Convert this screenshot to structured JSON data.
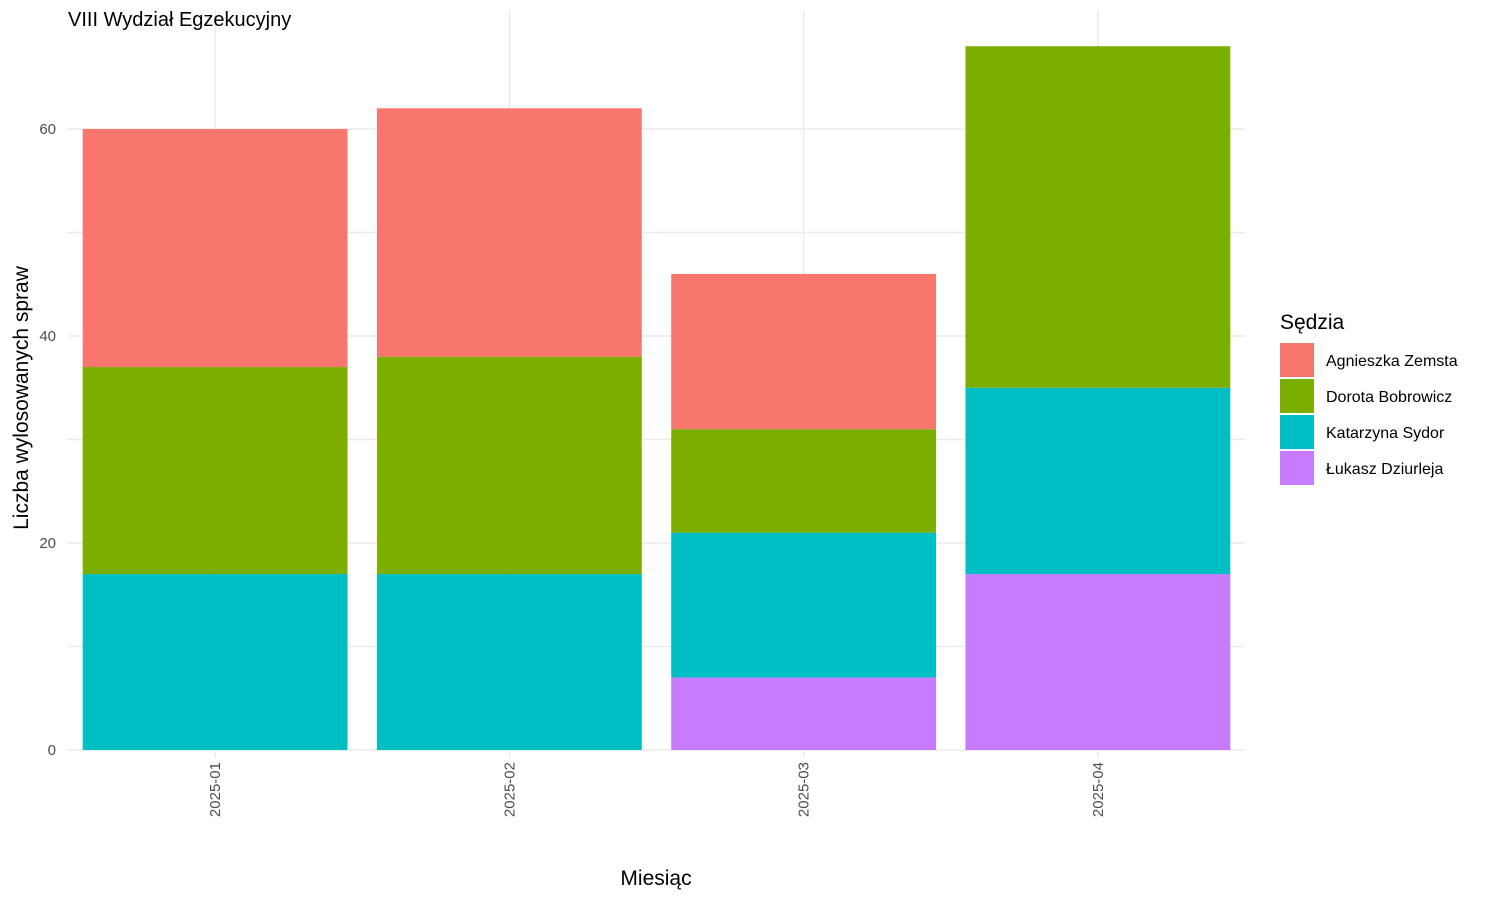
{
  "chart_data": {
    "type": "bar",
    "stacked": true,
    "title": "VIII Wydział Egzekucyjny",
    "xlabel": "Miesiąc",
    "ylabel": "Liczba wylosowanych spraw",
    "categories": [
      "2025-01",
      "2025-02",
      "2025-03",
      "2025-04"
    ],
    "ylim": [
      0,
      69
    ],
    "yticks": [
      0,
      20,
      40,
      60
    ],
    "grid": true,
    "legend": {
      "title": "Sędzia",
      "position": "right"
    },
    "series": [
      {
        "name": "Łukasz Dziurleja",
        "color": "#C77CFF",
        "values": [
          0,
          0,
          7,
          17
        ]
      },
      {
        "name": "Katarzyna Sydor",
        "color": "#00BFC4",
        "values": [
          17,
          17,
          14,
          18
        ]
      },
      {
        "name": "Dorota Bobrowicz",
        "color": "#7CAE00",
        "values": [
          20,
          21,
          10,
          33
        ]
      },
      {
        "name": "Agnieszka Zemsta",
        "color": "#F8766D",
        "values": [
          23,
          24,
          15,
          0
        ]
      }
    ],
    "legend_order": [
      "Agnieszka Zemsta",
      "Dorota Bobrowicz",
      "Katarzyna Sydor",
      "Łukasz Dziurleja"
    ]
  }
}
